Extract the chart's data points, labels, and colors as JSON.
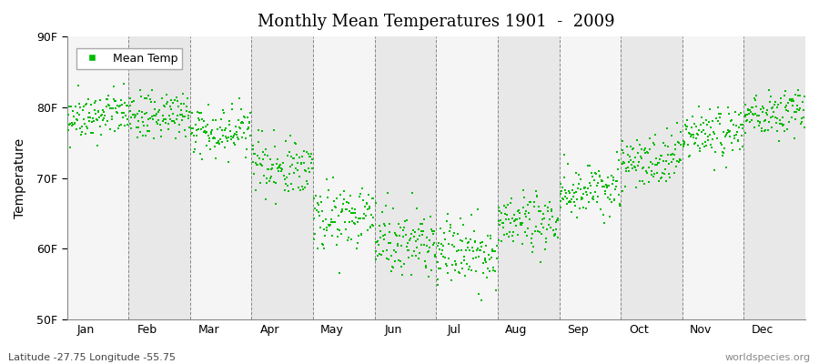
{
  "title": "Monthly Mean Temperatures 1901  -  2009",
  "ylabel": "Temperature",
  "bottom_left_label": "Latitude -27.75 Longitude -55.75",
  "bottom_right_label": "worldspecies.org",
  "ylim": [
    50,
    90
  ],
  "yticks": [
    50,
    60,
    70,
    80,
    90
  ],
  "ytick_labels": [
    "50F",
    "60F",
    "70F",
    "80F",
    "90F"
  ],
  "months": [
    "Jan",
    "Feb",
    "Mar",
    "Apr",
    "May",
    "Jun",
    "Jul",
    "Aug",
    "Sep",
    "Oct",
    "Nov",
    "Dec"
  ],
  "dot_color": "#00BB00",
  "dot_size": 3,
  "background_color": "#ffffff",
  "band_color_odd": "#e8e8e8",
  "band_color_even": "#f5f5f5",
  "legend_label": "Mean Temp",
  "num_years": 109,
  "year_start": 1901,
  "monthly_means": [
    78.5,
    78.5,
    76.5,
    71.5,
    64.5,
    61.0,
    59.5,
    63.5,
    68.0,
    72.5,
    76.0,
    79.0
  ],
  "monthly_stds": [
    1.6,
    1.6,
    1.8,
    2.0,
    2.3,
    2.3,
    2.4,
    2.0,
    2.0,
    1.8,
    1.8,
    1.6
  ],
  "monthly_trends": [
    0.005,
    0.004,
    0.004,
    0.003,
    0.003,
    0.002,
    0.002,
    0.003,
    0.003,
    0.004,
    0.004,
    0.005
  ]
}
